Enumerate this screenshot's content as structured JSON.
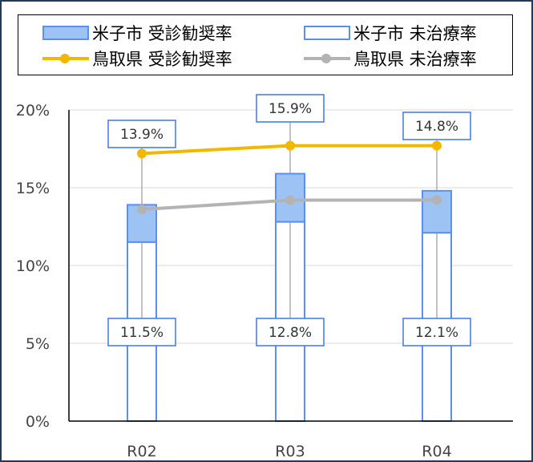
{
  "chart_data": {
    "type": "bar+line",
    "categories": [
      "R02",
      "R03",
      "R04"
    ],
    "ylim": [
      0,
      20
    ],
    "yticks": [
      "0%",
      "5%",
      "10%",
      "15%",
      "20%"
    ],
    "series": [
      {
        "name": "米子市 受診勧奨率",
        "type": "stacked-bar-total",
        "values": [
          13.9,
          15.9,
          14.8
        ],
        "labels": [
          "13.9%",
          "15.9%",
          "14.8%"
        ],
        "color": "#9dc3f5"
      },
      {
        "name": "米子市 未治療率",
        "type": "bar",
        "values": [
          11.5,
          12.8,
          12.1
        ],
        "labels": [
          "11.5%",
          "12.8%",
          "12.1%"
        ],
        "color": "#ffffff"
      },
      {
        "name": "鳥取県 受診勧奨率",
        "type": "line",
        "values": [
          17.2,
          17.7,
          17.7
        ],
        "color": "#f2b800"
      },
      {
        "name": "鳥取県 未治療率",
        "type": "line",
        "values": [
          13.6,
          14.2,
          14.2
        ],
        "color": "#b3b3b3"
      }
    ],
    "grid": true,
    "legend_position": "top"
  },
  "legend": {
    "item1": "米子市 受診勧奨率",
    "item2": "米子市 未治療率",
    "item3": "鳥取県 受診勧奨率",
    "item4": "鳥取県 未治療率"
  }
}
